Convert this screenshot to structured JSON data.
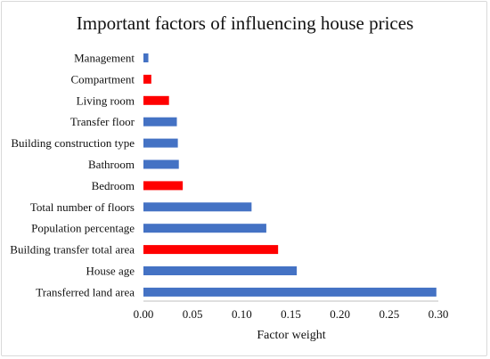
{
  "chart_data": {
    "type": "bar",
    "orientation": "horizontal",
    "title": "Important factors of influencing house prices",
    "xlabel": "Factor weight",
    "ylabel": "",
    "xlim": [
      0,
      0.3
    ],
    "xticks": [
      "0.00",
      "0.05",
      "0.10",
      "0.15",
      "0.20",
      "0.25",
      "0.30"
    ],
    "xtick_values": [
      0,
      0.05,
      0.1,
      0.15,
      0.2,
      0.25,
      0.3
    ],
    "grid": false,
    "legend": "none",
    "categories": [
      "Management",
      "Compartment",
      "Living room",
      "Transfer floor",
      "Building construction type",
      "Bathroom",
      "Bedroom",
      "Total number of floors",
      "Population percentage",
      "Building transfer total area",
      "House age",
      "Transferred land area"
    ],
    "values": [
      0.005,
      0.008,
      0.026,
      0.034,
      0.035,
      0.036,
      0.04,
      0.11,
      0.125,
      0.137,
      0.156,
      0.298
    ],
    "highlighted": [
      false,
      true,
      true,
      false,
      false,
      false,
      true,
      false,
      false,
      true,
      false,
      false
    ],
    "colors": {
      "default": "#4472c4",
      "highlight": "#ff0000",
      "axis": "#bfbfbf"
    }
  }
}
